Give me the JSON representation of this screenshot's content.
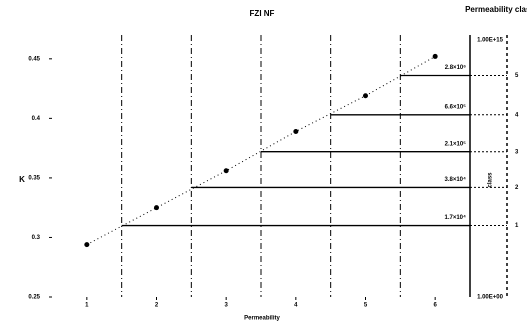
{
  "chart_data": {
    "type": "scatter",
    "title": "FZI NF",
    "x_label": "Permeability",
    "y_label": "K",
    "x": [
      1,
      2,
      3,
      4,
      5,
      6
    ],
    "values": [
      0.294,
      0.325,
      0.356,
      0.389,
      0.419,
      0.452
    ],
    "xlim": [
      0.5,
      6.5
    ],
    "ylim": [
      0.25,
      0.47
    ],
    "xticks": [
      1,
      2,
      3,
      4,
      5,
      6
    ],
    "yticks": [
      0.25,
      0.3,
      0.35,
      0.4,
      0.45
    ],
    "classes": {
      "boundaries": [
        1.5,
        2.5,
        3.5,
        4.5,
        5.5
      ],
      "levels": [
        0.31,
        0.342,
        0.372,
        0.403,
        0.436
      ],
      "labels": [
        "1.7×10⁴",
        "3.8×10⁴",
        "2.1×10⁵",
        "6.6×10⁵",
        "2.8×10⁶"
      ],
      "numbers": [
        "1",
        "2",
        "3",
        "4",
        "5"
      ]
    },
    "y2_title": "Permeability class",
    "y2_label": "class",
    "y2_top": "1.00E+15",
    "y2_bottom": "1.00E+00"
  }
}
